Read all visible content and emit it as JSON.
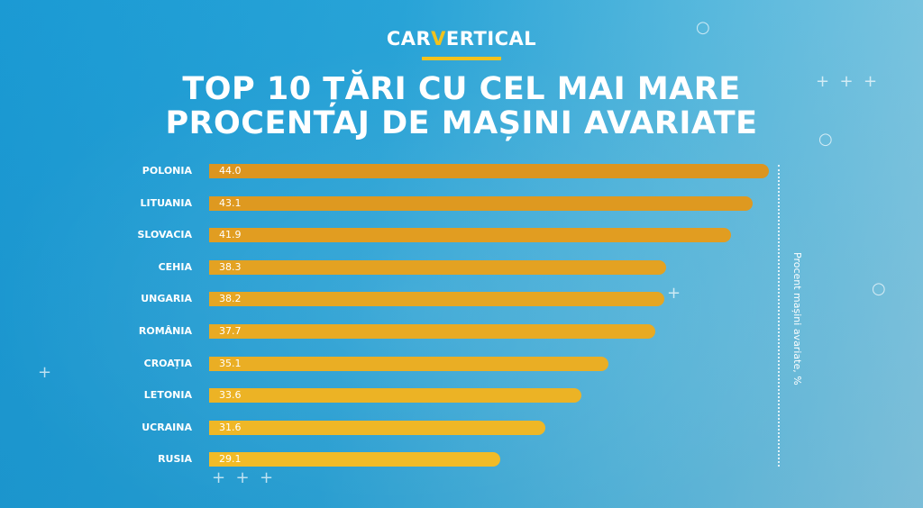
{
  "logo": {
    "pre": "CAR",
    "v": "V",
    "post": "ERTICAL"
  },
  "chart_data": {
    "type": "bar",
    "orientation": "horizontal",
    "title": "TOP 10 ȚĂRI CU CEL MAI MARE PROCENTAJ DE MAȘINI AVARIATE",
    "title_lines": [
      "TOP 10 ȚĂRI CU CEL MAI MARE",
      "PROCENTAJ DE MAȘINI AVARIATE"
    ],
    "ylabel": "Procent mașini avariate, %",
    "categories": [
      "POLONIA",
      "LITUANIA",
      "SLOVACIA",
      "CEHIA",
      "UNGARIA",
      "ROMÂNIA",
      "CROAȚIA",
      "LETONIA",
      "UCRAINA",
      "RUSIA"
    ],
    "values": [
      44.0,
      43.1,
      41.9,
      38.3,
      38.2,
      37.7,
      35.1,
      33.6,
      31.6,
      29.1
    ],
    "value_labels": [
      "44.0",
      "43.1",
      "41.9",
      "38.3",
      "38.2",
      "37.7",
      "35.1",
      "33.6",
      "31.6",
      "29.1"
    ],
    "colors": {
      "top": "#dc951f",
      "bottom": "#f1bb27"
    }
  }
}
